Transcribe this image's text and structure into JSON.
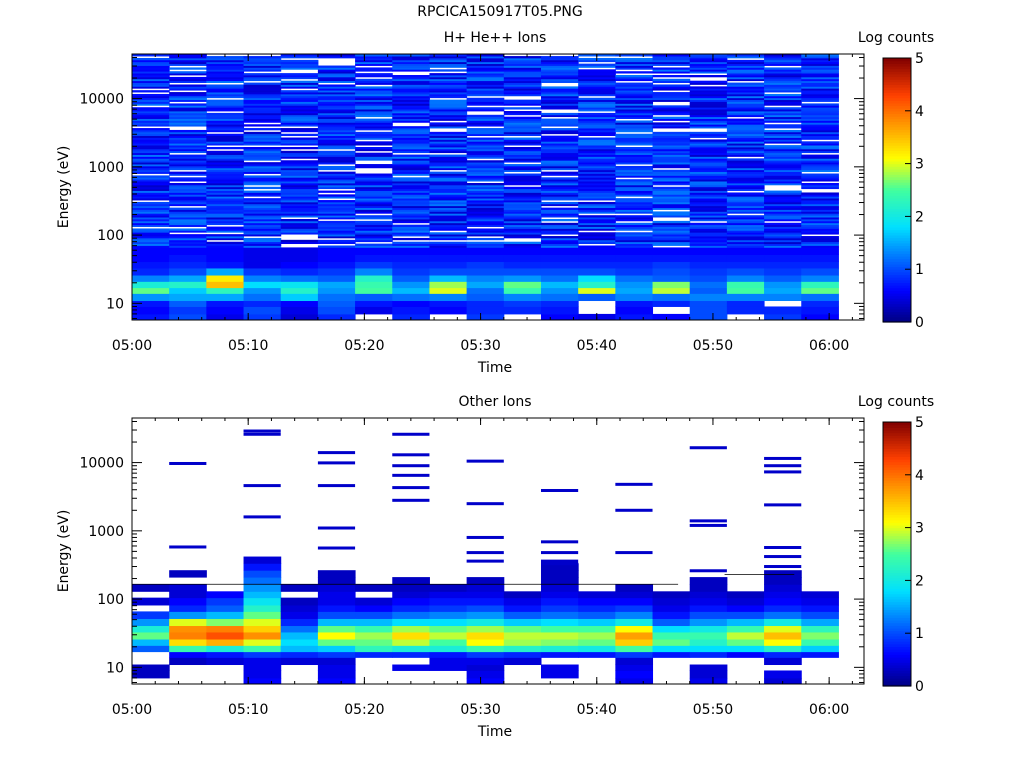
{
  "figure": {
    "title": "RPCICA150917T05.PNG"
  },
  "colors": {
    "background": "#ffffff",
    "missing": "#ffffff"
  },
  "chart_data": [
    {
      "type": "heatmap",
      "title": "H+ He++ Ions",
      "xlabel": "Time",
      "ylabel": "Energy (eV)",
      "yscale": "log",
      "ylim": [
        5.7,
        45000
      ],
      "xlim": [
        "05:00",
        "06:03"
      ],
      "xticks": [
        "05:00",
        "05:10",
        "05:20",
        "05:30",
        "05:40",
        "05:50",
        "06:00"
      ],
      "yticks": [
        "10",
        "100",
        "1000",
        "10000"
      ],
      "colorbar": {
        "label": "Log counts",
        "range": [
          0,
          5
        ],
        "ticks": [
          "0",
          "1",
          "2",
          "3",
          "4",
          "5"
        ],
        "colormap": "rainbow"
      },
      "time_bins_start_minutes": [
        0,
        3.2,
        6.4,
        9.6,
        12.8,
        16.0,
        19.2,
        22.4,
        25.6,
        28.8,
        32.0,
        35.2,
        38.4,
        41.6,
        44.8,
        48.0,
        51.2,
        54.4,
        57.6
      ],
      "time_bin_width_minutes": 3.2,
      "energy_band_edges_eV": [
        5.7,
        7,
        9,
        11,
        14,
        17,
        21,
        26,
        33,
        41,
        52,
        66
      ],
      "spectra_low_energy_log_counts": [
        [
          0.7,
          0.6,
          0.7,
          1.4,
          2.6,
          2.1,
          1.3,
          0.8,
          0.7,
          0.6,
          0.6
        ],
        [
          1.0,
          0.9,
          1.1,
          1.5,
          1.7,
          2.2,
          1.5,
          1.0,
          0.8,
          0.7,
          0.6
        ],
        [
          0.5,
          0.6,
          0.7,
          1.5,
          2.3,
          3.5,
          3.2,
          1.5,
          0.7,
          0.6,
          0.6
        ],
        [
          0.9,
          1.0,
          0.8,
          1.2,
          1.4,
          1.8,
          1.3,
          0.9,
          0.5,
          0.5,
          0.5
        ],
        [
          0.4,
          0.5,
          0.6,
          1.7,
          2.2,
          1.9,
          1.2,
          0.8,
          0.6,
          0.5,
          0.5
        ],
        [
          0.8,
          1.0,
          1.1,
          1.2,
          1.4,
          1.5,
          1.1,
          0.9,
          0.7,
          0.6,
          0.6
        ],
        [
          null,
          0.5,
          0.7,
          1.1,
          2.5,
          2.4,
          2.2,
          1.3,
          0.9,
          0.7,
          0.6
        ],
        [
          0.8,
          0.7,
          0.6,
          1.2,
          1.6,
          1.4,
          1.1,
          0.9,
          0.8,
          0.7,
          0.6
        ],
        [
          null,
          0.6,
          0.7,
          1.3,
          3.0,
          2.8,
          1.6,
          1.0,
          0.8,
          0.7,
          0.6
        ],
        [
          0.9,
          0.8,
          0.8,
          1.1,
          1.2,
          1.5,
          1.3,
          1.0,
          0.9,
          0.7,
          0.6
        ],
        [
          null,
          0.8,
          0.9,
          1.3,
          2.4,
          2.6,
          1.4,
          1.0,
          0.8,
          0.7,
          0.6
        ],
        [
          0.6,
          0.7,
          0.8,
          1.2,
          1.4,
          1.6,
          1.2,
          1.0,
          0.8,
          0.7,
          0.6
        ],
        [
          0.5,
          null,
          null,
          1.1,
          3.0,
          2.2,
          1.8,
          1.0,
          0.8,
          0.7,
          0.6
        ],
        [
          0.7,
          0.6,
          0.7,
          1.3,
          1.5,
          1.4,
          1.2,
          0.9,
          0.8,
          0.7,
          0.6
        ],
        [
          0.6,
          null,
          0.8,
          1.2,
          2.9,
          2.7,
          1.1,
          1.0,
          0.9,
          0.7,
          0.6
        ],
        [
          1.0,
          1.0,
          1.0,
          1.3,
          1.1,
          1.2,
          1.0,
          0.9,
          0.8,
          0.7,
          0.6
        ],
        [
          null,
          0.8,
          0.8,
          1.3,
          2.5,
          2.4,
          1.3,
          1.0,
          0.8,
          0.7,
          0.6
        ],
        [
          0.9,
          0.8,
          null,
          1.3,
          1.5,
          1.4,
          1.1,
          0.9,
          0.8,
          0.7,
          0.6
        ],
        [
          0.6,
          0.7,
          0.8,
          1.2,
          2.6,
          2.3,
          1.3,
          1.0,
          0.8,
          0.7,
          0.6
        ]
      ],
      "high_energy_level_log_counts": 0.8
    },
    {
      "type": "heatmap",
      "title": "Other Ions",
      "xlabel": "Time",
      "ylabel": "Energy (eV)",
      "yscale": "log",
      "ylim": [
        5.7,
        45000
      ],
      "xlim": [
        "05:00",
        "06:03"
      ],
      "xticks": [
        "05:00",
        "05:10",
        "05:20",
        "05:30",
        "05:40",
        "05:50",
        "06:00"
      ],
      "yticks": [
        "10",
        "100",
        "1000",
        "10000"
      ],
      "colorbar": {
        "label": "Log counts",
        "range": [
          0,
          5
        ],
        "ticks": [
          "0",
          "1",
          "2",
          "3",
          "4",
          "5"
        ],
        "colormap": "rainbow"
      },
      "time_bins_start_minutes": [
        0,
        3.2,
        6.4,
        9.6,
        12.8,
        16.0,
        19.2,
        22.4,
        25.6,
        28.8,
        32.0,
        35.2,
        38.4,
        41.6,
        44.8,
        48.0,
        51.2,
        54.4,
        57.6
      ],
      "time_bin_width_minutes": 3.2,
      "energy_band_edges_eV": [
        5.7,
        7,
        9,
        11,
        14,
        17,
        21,
        26,
        33,
        41,
        52,
        66,
        82,
        105,
        130,
        165,
        210,
        265,
        335,
        420
      ],
      "spectra_log_counts": [
        [
          null,
          0.3,
          0.3,
          null,
          null,
          1.1,
          1.6,
          2.6,
          2.1,
          1.4,
          0.9,
          null,
          0.4,
          null,
          0.3,
          null,
          null,
          null,
          null
        ],
        [
          null,
          null,
          null,
          0.3,
          0.6,
          2.4,
          3.3,
          3.9,
          3.8,
          3.0,
          1.4,
          0.8,
          0.6,
          0.4,
          0.4,
          null,
          0.3,
          null,
          null
        ],
        [
          null,
          null,
          null,
          0.4,
          0.7,
          2.1,
          3.6,
          4.2,
          3.9,
          2.7,
          1.6,
          1.1,
          0.9,
          0.6,
          null,
          null,
          null,
          null,
          null
        ],
        [
          0.6,
          0.5,
          0.5,
          0.5,
          0.9,
          2.4,
          3.0,
          3.8,
          3.4,
          3.0,
          2.6,
          2.2,
          1.9,
          1.6,
          1.4,
          1.2,
          1.0,
          0.7,
          0.4
        ],
        [
          null,
          null,
          null,
          0.4,
          0.8,
          1.6,
          1.8,
          1.6,
          1.2,
          0.8,
          0.5,
          0.4,
          0.3,
          null,
          0.3,
          null,
          null,
          null,
          null
        ],
        [
          0.6,
          0.5,
          0.5,
          0.4,
          0.9,
          1.7,
          2.6,
          3.1,
          2.6,
          1.6,
          1.0,
          0.7,
          0.5,
          0.5,
          0.4,
          0.3,
          0.3,
          null,
          null
        ],
        [
          null,
          null,
          null,
          null,
          0.8,
          2.3,
          2.6,
          2.8,
          2.4,
          1.6,
          1.0,
          0.6,
          0.4,
          null,
          0.3,
          null,
          null,
          null,
          null
        ],
        [
          null,
          null,
          0.5,
          null,
          0.8,
          2.1,
          2.9,
          3.3,
          2.8,
          1.8,
          1.2,
          0.8,
          0.6,
          0.4,
          0.3,
          0.3,
          null,
          null,
          null
        ],
        [
          null,
          null,
          0.5,
          0.5,
          0.7,
          2.1,
          2.5,
          2.9,
          2.6,
          1.8,
          1.3,
          0.9,
          0.7,
          0.5,
          0.3,
          null,
          null,
          null,
          null
        ],
        [
          0.6,
          0.5,
          0.4,
          0.5,
          0.9,
          2.4,
          3.1,
          3.3,
          2.8,
          2.0,
          1.4,
          1.0,
          0.7,
          0.5,
          0.4,
          0.3,
          null,
          null,
          null
        ],
        [
          null,
          null,
          null,
          0.4,
          0.8,
          2.2,
          2.8,
          2.9,
          2.6,
          1.7,
          1.1,
          0.7,
          0.5,
          0.3,
          null,
          null,
          null,
          null,
          null
        ],
        [
          null,
          0.5,
          0.5,
          null,
          0.7,
          2.1,
          2.7,
          2.9,
          2.5,
          1.8,
          1.2,
          0.9,
          0.7,
          0.5,
          0.4,
          0.3,
          0.3,
          0.3,
          null
        ],
        [
          null,
          null,
          null,
          null,
          0.7,
          2.0,
          2.6,
          2.8,
          2.5,
          1.7,
          1.1,
          0.8,
          0.6,
          0.4,
          null,
          null,
          null,
          null,
          null
        ],
        [
          0.5,
          0.6,
          0.5,
          0.4,
          0.9,
          2.5,
          3.4,
          3.7,
          3.1,
          2.0,
          1.3,
          0.9,
          0.6,
          0.4,
          0.3,
          null,
          null,
          null,
          null
        ],
        [
          null,
          null,
          null,
          null,
          0.7,
          1.8,
          2.6,
          2.4,
          1.8,
          1.1,
          0.7,
          0.5,
          0.4,
          0.3,
          null,
          null,
          null,
          null,
          null
        ],
        [
          0.5,
          0.4,
          0.4,
          null,
          0.8,
          1.8,
          2.2,
          2.4,
          2.0,
          1.4,
          1.0,
          0.7,
          0.5,
          0.4,
          0.3,
          0.3,
          null,
          null,
          null
        ],
        [
          null,
          null,
          null,
          null,
          0.6,
          1.8,
          2.6,
          2.9,
          2.4,
          1.6,
          1.0,
          0.6,
          0.4,
          0.3,
          null,
          null,
          null,
          null,
          null
        ],
        [
          0.4,
          0.5,
          null,
          0.4,
          0.8,
          2.2,
          3.1,
          3.5,
          3.0,
          2.0,
          1.2,
          0.8,
          0.6,
          0.5,
          0.4,
          0.3,
          0.3,
          null,
          null
        ],
        [
          null,
          null,
          null,
          null,
          0.7,
          1.7,
          2.4,
          2.7,
          2.3,
          1.5,
          1.0,
          0.7,
          0.5,
          0.4,
          null,
          null,
          null,
          null,
          null
        ]
      ],
      "sparse_high_energy_lines_eV": [
        [],
        [
          580,
          9700
        ],
        [],
        [
          1600,
          4600,
          26000,
          29000
        ],
        [],
        [
          560,
          1100,
          4600,
          9900,
          14000
        ],
        [],
        [
          2800,
          4300,
          6500,
          9000,
          13000,
          26000
        ],
        [],
        [
          360,
          480,
          800,
          2500,
          10500
        ],
        [],
        [
          330,
          360,
          480,
          690,
          3900
        ],
        [],
        [
          480,
          2000,
          4800
        ],
        [],
        [
          260,
          1200,
          1400,
          16500
        ],
        [],
        [
          300,
          420,
          570,
          2400,
          7300,
          9000,
          11500
        ],
        []
      ]
    }
  ]
}
